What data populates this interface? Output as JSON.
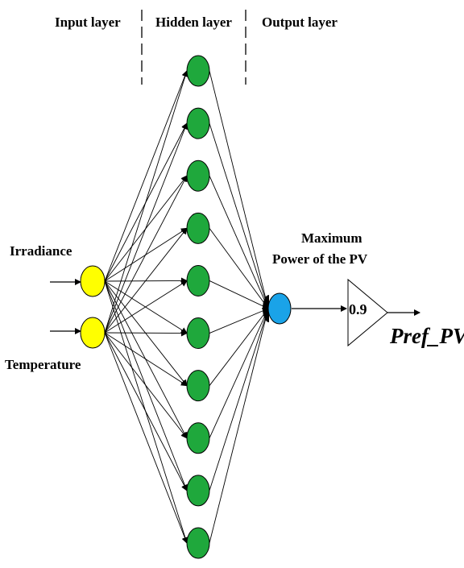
{
  "layers": {
    "input": "Input layer",
    "hidden": "Hidden layer",
    "output": "Output layer"
  },
  "inputs": [
    "Irradiance",
    "Temperature"
  ],
  "hidden_neuron_count": 10,
  "output": {
    "label_line1": "Maximum",
    "label_line2": "Power of the PV"
  },
  "gain": {
    "value": "0.9"
  },
  "result_label": "Pref_PV",
  "colors": {
    "input_node": "#ffff00",
    "hidden_node": "#1fa83c",
    "output_node": "#1aa3e8",
    "stroke": "#000000"
  }
}
